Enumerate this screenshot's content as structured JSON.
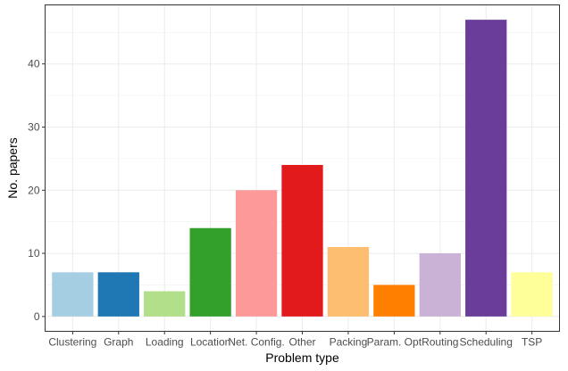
{
  "chart_data": {
    "type": "bar",
    "title": "",
    "xlabel": "Problem type",
    "ylabel": "No. papers",
    "categories": [
      "Clustering",
      "Graph",
      "Loading",
      "Location",
      "Net. Config.",
      "Other",
      "Packing",
      "Param. Opt",
      "Routing",
      "Scheduling",
      "TSP"
    ],
    "values": [
      7,
      7,
      4,
      14,
      20,
      24,
      11,
      5,
      10,
      47,
      7
    ],
    "colors": [
      "#a6cee3",
      "#1f78b4",
      "#b2df8a",
      "#33a02c",
      "#fb9a99",
      "#e31a1c",
      "#fdbf6f",
      "#ff7f00",
      "#cab2d6",
      "#6a3d9a",
      "#ffff99"
    ],
    "yticks": [
      0,
      10,
      20,
      30,
      40
    ],
    "ylim": [
      -2.35,
      49.35
    ],
    "grid": true,
    "legend": "none"
  }
}
